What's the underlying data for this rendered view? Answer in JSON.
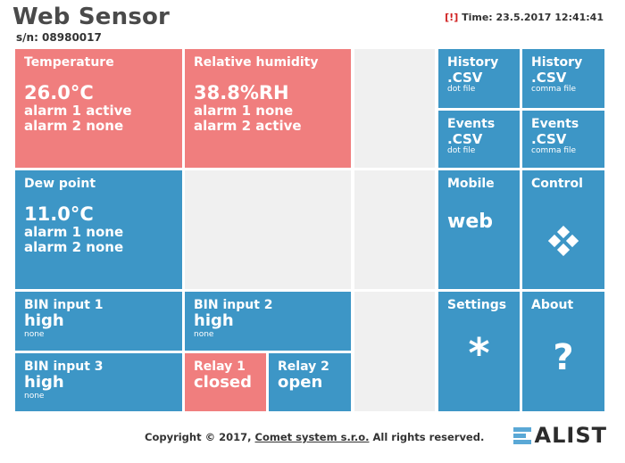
{
  "header": {
    "title": "Web Sensor",
    "serial": "s/n: 08980017",
    "alarm_flag": "[!]",
    "time": "Time: 23.5.2017 12:41:41"
  },
  "tiles": {
    "temperature": {
      "label": "Temperature",
      "value": "26.0°C",
      "alarm1": "alarm 1 active",
      "alarm2": "alarm 2 none"
    },
    "humidity": {
      "label": "Relative humidity",
      "value": "38.8%RH",
      "alarm1": "alarm 1 none",
      "alarm2": "alarm 2 active"
    },
    "dew_point": {
      "label": "Dew point",
      "value": "11.0°C",
      "alarm1": "alarm 1 none",
      "alarm2": "alarm 2 none"
    },
    "bin1": {
      "label": "BIN input 1",
      "state": "high",
      "sub": "none"
    },
    "bin2": {
      "label": "BIN input 2",
      "state": "high",
      "sub": "none"
    },
    "bin3": {
      "label": "BIN input 3",
      "state": "high",
      "sub": "none"
    },
    "relay1": {
      "label": "Relay 1",
      "state": "closed"
    },
    "relay2": {
      "label": "Relay 2",
      "state": "open"
    },
    "history_dot": {
      "label": "History",
      "ext": ".CSV",
      "sub": "dot file"
    },
    "history_comma": {
      "label": "History",
      "ext": ".CSV",
      "sub": "comma file"
    },
    "events_dot": {
      "label": "Events",
      "ext": ".CSV",
      "sub": "dot file"
    },
    "events_comma": {
      "label": "Events",
      "ext": ".CSV",
      "sub": "comma file"
    },
    "mobile": {
      "label": "Mobile",
      "value": "web"
    },
    "control": {
      "label": "Control",
      "icon": "diamond-grid-icon"
    },
    "settings": {
      "label": "Settings",
      "icon": "asterisk-icon",
      "glyph": "*"
    },
    "about": {
      "label": "About",
      "icon": "question-icon",
      "glyph": "?"
    }
  },
  "footer": {
    "prefix": "Copyright © 2017, ",
    "company": "Comet system s.r.o.",
    "suffix": " All rights reserved."
  },
  "logo": {
    "text": "ALIST"
  },
  "colors": {
    "blue": "#3d96c6",
    "red": "#f07e7e",
    "gray": "#f0f0f0"
  }
}
